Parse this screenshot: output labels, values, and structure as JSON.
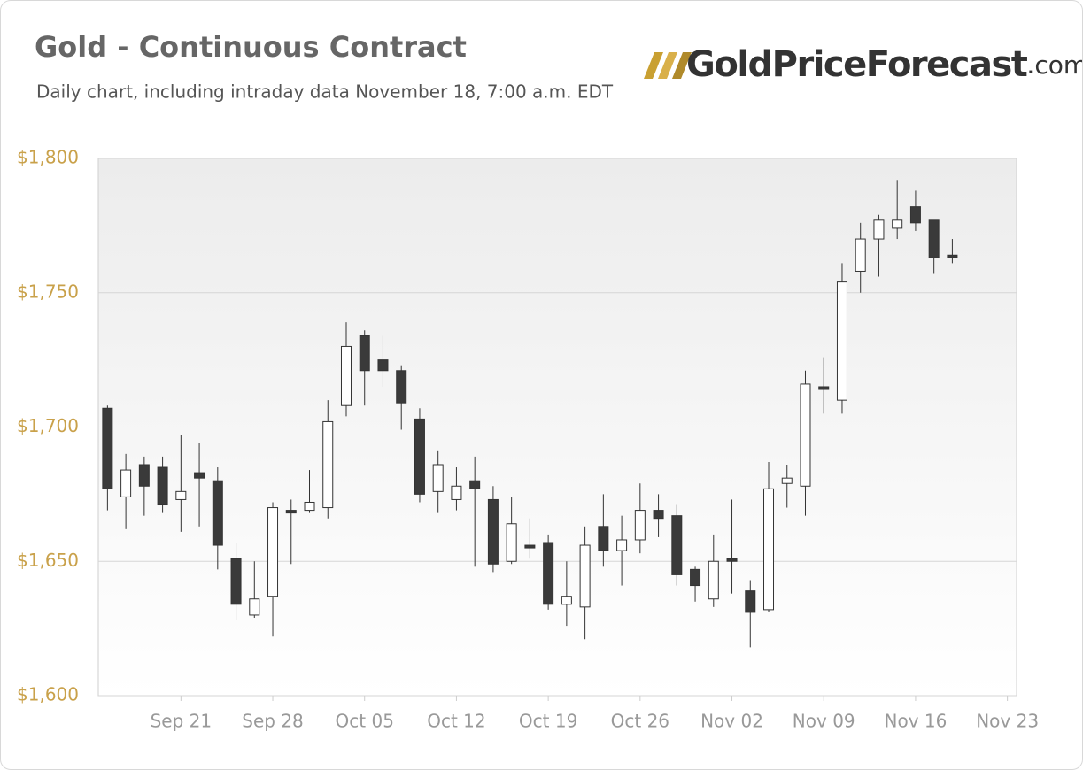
{
  "chart_data": {
    "type": "candlestick",
    "title": "Gold - Continuous Contract",
    "subtitle": "Daily chart, including intraday data November 18, 7:00 a.m. EDT",
    "logo": {
      "name": "GoldPriceForecast",
      "suffix": ".com"
    },
    "categories": [
      null,
      null,
      null,
      null,
      "Sep 21",
      null,
      null,
      null,
      null,
      "Sep 28",
      null,
      null,
      null,
      null,
      "Oct 05",
      null,
      null,
      null,
      null,
      "Oct 12",
      null,
      null,
      null,
      null,
      "Oct 19",
      null,
      null,
      null,
      null,
      "Oct 26",
      null,
      null,
      null,
      null,
      "Nov 02",
      null,
      null,
      null,
      null,
      "Nov 09",
      null,
      null,
      null,
      null,
      "Nov 16",
      null,
      null,
      null,
      null,
      "Nov 23"
    ],
    "series": [
      {
        "up_color": "#ffffff",
        "down_color": "#3a3a3a",
        "open": [
          1707,
          1674,
          1686,
          1685,
          1673,
          1683,
          1680,
          1651,
          1630,
          1637,
          1669,
          1669,
          1670,
          1708,
          1734,
          1725,
          1721,
          1703,
          1676,
          1673,
          1680,
          1673,
          1650,
          1656,
          1657,
          1634,
          1633,
          1663,
          1654,
          1658,
          1669,
          1667,
          1647,
          1636,
          1651,
          1639,
          1632,
          1679,
          1678,
          1715,
          1710,
          1758,
          1770,
          1774,
          1782,
          1777,
          1764,
          null,
          null,
          null
        ],
        "high": [
          1708,
          1690,
          1689,
          1689,
          1697,
          1694,
          1685,
          1657,
          1650,
          1672,
          1673,
          1684,
          1710,
          1739,
          1736,
          1734,
          1723,
          1707,
          1691,
          1685,
          1689,
          1678,
          1674,
          1666,
          1660,
          1650,
          1663,
          1675,
          1667,
          1679,
          1675,
          1671,
          1648,
          1660,
          1673,
          1643,
          1687,
          1686,
          1721,
          1726,
          1761,
          1776,
          1779,
          1792,
          1788,
          1777,
          1770,
          null,
          null,
          null
        ],
        "low": [
          1669,
          1662,
          1667,
          1668,
          1661,
          1663,
          1647,
          1628,
          1629,
          1622,
          1649,
          1668,
          1666,
          1704,
          1708,
          1715,
          1699,
          1672,
          1668,
          1669,
          1648,
          1646,
          1649,
          1651,
          1632,
          1626,
          1621,
          1648,
          1641,
          1653,
          1659,
          1641,
          1635,
          1633,
          1638,
          1618,
          1631,
          1670,
          1667,
          1705,
          1705,
          1750,
          1756,
          1770,
          1773,
          1757,
          1761,
          null,
          null,
          null
        ],
        "close": [
          1677,
          1684,
          1678,
          1671,
          1676,
          1681,
          1656,
          1634,
          1636,
          1670,
          1668,
          1672,
          1702,
          1730,
          1721,
          1721,
          1709,
          1675,
          1686,
          1678,
          1677,
          1649,
          1664,
          1655,
          1634,
          1637,
          1656,
          1654,
          1658,
          1669,
          1666,
          1645,
          1641,
          1650,
          1650,
          1631,
          1677,
          1681,
          1716,
          1714,
          1754,
          1770,
          1777,
          1777,
          1776,
          1763,
          1763,
          null,
          null,
          null
        ]
      }
    ],
    "ylim": [
      1600,
      1800
    ],
    "yticks": [
      {
        "value": 1600,
        "label": "$1,600"
      },
      {
        "value": 1650,
        "label": "$1,650"
      },
      {
        "value": 1700,
        "label": "$1,700"
      },
      {
        "value": 1750,
        "label": "$1,750"
      },
      {
        "value": 1800,
        "label": "$1,800"
      }
    ],
    "grid": true
  }
}
